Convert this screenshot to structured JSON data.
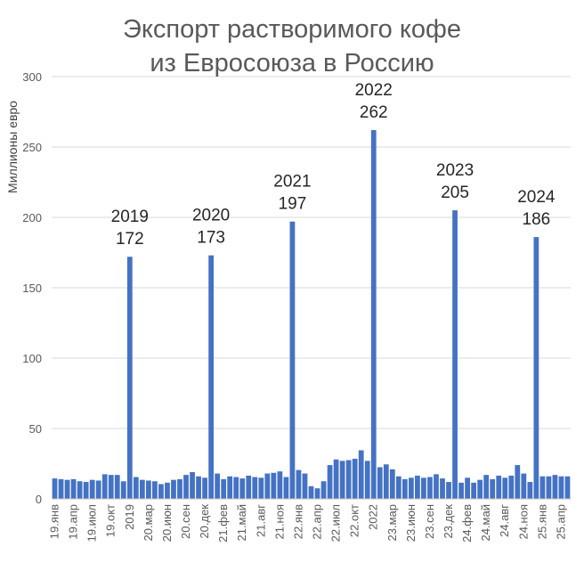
{
  "chart_data": {
    "type": "bar",
    "title_lines": [
      "Экспорт растворимого кофе",
      "из Евросоюза в Россию"
    ],
    "ylabel": "Миллионы евро",
    "xlabel": "",
    "ylim": [
      0,
      300
    ],
    "yticks": [
      0,
      50,
      100,
      150,
      200,
      250,
      300
    ],
    "grid": true,
    "color": "#4472c4",
    "x_tick_labels": [
      "19.янв",
      "19.апр",
      "19.июл",
      "19.окт",
      "2019",
      "20.мар",
      "20.июн",
      "20.сен",
      "20.дек",
      "21.фев",
      "21.май",
      "21.авг",
      "21.ноя",
      "22.янв",
      "22.апр",
      "22.июл",
      "22.окт",
      "2022",
      "23.мар",
      "23.июн",
      "23.сен",
      "23.дек",
      "24.фев",
      "24.май",
      "24.авг",
      "24.ноя",
      "25.янв",
      "25.апр"
    ],
    "values": [
      14.5,
      14,
      13.5,
      14,
      12.5,
      12,
      13.5,
      13,
      17.5,
      17,
      17,
      12.5,
      172,
      15.5,
      13.5,
      13,
      12.5,
      10.5,
      11.5,
      13.5,
      14,
      17,
      19,
      16,
      15,
      173,
      18,
      14,
      16,
      15.5,
      14.5,
      16.5,
      15.5,
      15,
      18,
      18.5,
      19.5,
      15.5,
      197,
      20.5,
      18,
      9,
      7.5,
      12.5,
      24,
      28,
      27,
      27.5,
      28.5,
      34.5,
      27,
      262,
      22.5,
      24.5,
      21,
      16,
      14,
      15,
      16.5,
      15,
      15.5,
      17.5,
      14.5,
      12,
      205,
      11.5,
      15,
      11.5,
      13.5,
      17,
      14,
      16.5,
      15,
      16.5,
      24,
      18,
      12,
      186,
      16,
      16,
      17,
      16,
      16
    ],
    "annotations": [
      {
        "year": "2019",
        "value": "172",
        "index": 12
      },
      {
        "year": "2020",
        "value": "173",
        "index": 25
      },
      {
        "year": "2021",
        "value": "197",
        "index": 38
      },
      {
        "year": "2022",
        "value": "262",
        "index": 51
      },
      {
        "year": "2023",
        "value": "205",
        "index": 64
      },
      {
        "year": "2024",
        "value": "186",
        "index": 77
      }
    ]
  }
}
